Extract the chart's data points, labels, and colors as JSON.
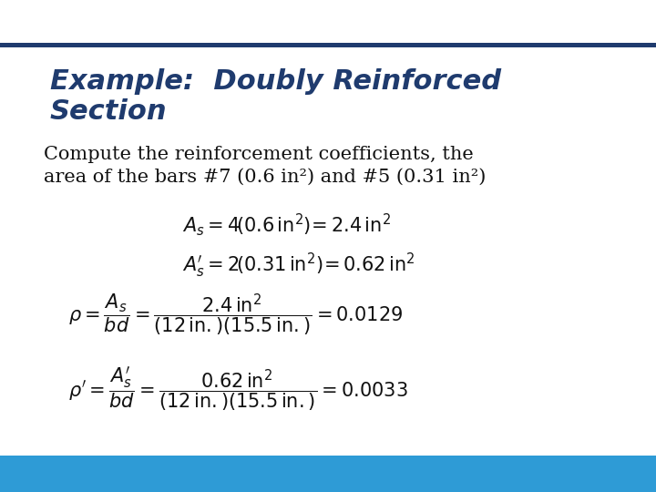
{
  "title_line1": "Example:  Doubly Reinforced",
  "title_line2": "Section",
  "title_color": "#1F3B6E",
  "title_fontsize": 22,
  "body_text1": "Compute the reinforcement coefficients, the",
  "body_text2": "area of the bars #7 (0.6 in²) and #5 (0.31 in²)",
  "body_fontsize": 15,
  "body_color": "#111111",
  "top_bar_color": "#1F3B6E",
  "bottom_bar_color": "#2E9BD6",
  "bg_color": "#FFFFFF",
  "eq_fontsize": 15,
  "eq_color": "#111111"
}
